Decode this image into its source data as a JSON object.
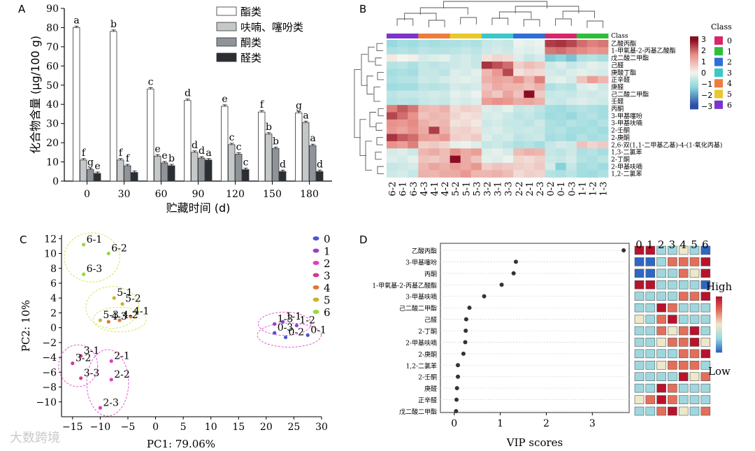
{
  "panel_labels": {
    "a": "A",
    "b": "B",
    "c": "C",
    "d": "D"
  },
  "colors": {
    "bar_series": [
      "#ffffff",
      "#c5c8c9",
      "#8e9499",
      "#2b2f33"
    ],
    "bar_edge": "#333333",
    "heat_low": "#2b4fa8",
    "heat_mid": "#f4f4ee",
    "heat_high": "#8b0d22",
    "class_colors": [
      "#d8266a",
      "#2fbe3a",
      "#2e6fd7",
      "#3ac8c8",
      "#f07c3c",
      "#e8c82a",
      "#7b35c9"
    ],
    "pca_colors": [
      "#5050d8",
      "#9a3fc9",
      "#e03cc8",
      "#d43a8e",
      "#e2733a",
      "#c9b32a",
      "#9ad83c"
    ],
    "ellipse": "#d9e35c",
    "ellipse_pink": "#e05bd0"
  },
  "watermark": "大数跨境",
  "chart_data": [
    {
      "type": "bar",
      "panel": "A",
      "categories": [
        "0",
        "30",
        "60",
        "90",
        "120",
        "150",
        "180"
      ],
      "xlabel": "贮藏时间 (d)",
      "ylabel": "化合物含量 (μg/100 g)",
      "ylim": [
        0,
        90
      ],
      "yticks": [
        0,
        10,
        20,
        30,
        40,
        50,
        60,
        70,
        80,
        90
      ],
      "legend_position": "top-right",
      "series": [
        {
          "name": "酯类",
          "values": [
            80,
            78,
            48,
            42,
            39,
            36,
            35.5
          ],
          "labels": [
            "a",
            "b",
            "c",
            "d",
            "e",
            "f",
            "g"
          ]
        },
        {
          "name": "呋喃、噻吩类",
          "values": [
            11,
            11,
            13,
            15,
            19,
            24.5,
            30.5
          ],
          "labels": [
            "f",
            "f",
            "e",
            "d",
            "c",
            "b",
            "a"
          ]
        },
        {
          "name": "酮类",
          "values": [
            6,
            8,
            9.5,
            12,
            14,
            17,
            18.5
          ],
          "labels": [
            "g",
            "f",
            "e",
            "d",
            "c",
            "b",
            "a"
          ]
        },
        {
          "name": "醛类",
          "values": [
            4,
            4.5,
            8,
            11,
            6,
            5,
            5
          ],
          "labels": [
            "e",
            "",
            "b",
            "a",
            "c",
            "d",
            "d"
          ]
        }
      ]
    },
    {
      "type": "heatmap",
      "panel": "B",
      "columns": [
        "6-2",
        "6-1",
        "6-3",
        "4-3",
        "4-1",
        "4-2",
        "5-2",
        "5-1",
        "5-3",
        "3-2",
        "3-1",
        "3-3",
        "2-2",
        "2-1",
        "2-3",
        "0-2",
        "0-1",
        "0-3",
        "1-1",
        "1-2",
        "1-3"
      ],
      "column_classes": [
        6,
        6,
        6,
        4,
        4,
        4,
        5,
        5,
        5,
        3,
        3,
        3,
        2,
        2,
        2,
        0,
        0,
        0,
        1,
        1,
        1
      ],
      "rows": [
        "乙酸丙酯",
        "1-甲氧基-2-丙基乙酸酯",
        "戊二酸二甲酯",
        "己醛",
        "庚酸丁酯",
        "正辛醛",
        "庚醛",
        "己二酸二甲酯",
        "壬醛",
        "丙酮",
        "3-甲基噻吩",
        "3-甲基呋喃",
        "2-壬酮",
        "2-庚酮",
        "2,6-双(1,1-二甲基乙基)-4-(1-氧化丙基)",
        "1,3-二氯苯",
        "2-丁酮",
        "2-甲基呋喃",
        "1,2-二氯苯"
      ],
      "class_title": "Class",
      "class_bar_label": "Class",
      "class_legend": [
        "0",
        "1",
        "2",
        "3",
        "4",
        "5",
        "6"
      ],
      "colorbar_ticks": [
        "3",
        "2",
        "1",
        "0",
        "−1",
        "−2",
        "−3"
      ],
      "values": [
        [
          -1.2,
          -1.0,
          -1.1,
          -0.9,
          -1.0,
          -0.9,
          -0.9,
          -0.8,
          -0.9,
          -0.6,
          -0.5,
          -0.6,
          -0.1,
          -0.2,
          -0.1,
          2.5,
          2.6,
          2.4,
          2.0,
          1.8,
          1.9
        ],
        [
          -0.9,
          -0.8,
          -0.9,
          -0.7,
          -0.8,
          -0.8,
          -0.7,
          -0.6,
          -0.7,
          -0.5,
          -0.4,
          -0.5,
          -0.2,
          -0.3,
          -0.2,
          1.9,
          2.0,
          1.8,
          1.7,
          1.5,
          1.6
        ],
        [
          0.2,
          0.0,
          0.1,
          -0.4,
          -0.3,
          -0.2,
          -0.5,
          -0.4,
          -0.6,
          0.3,
          0.5,
          0.4,
          -0.3,
          -0.6,
          -0.4,
          -1.5,
          -1.3,
          -1.6,
          -0.9,
          -0.8,
          -1.0
        ],
        [
          -0.8,
          -0.7,
          -0.9,
          -0.6,
          -0.7,
          -0.6,
          -0.5,
          -0.4,
          -0.6,
          2.6,
          2.3,
          2.0,
          0.6,
          0.9,
          0.7,
          -0.5,
          -0.3,
          -0.6,
          -0.4,
          -0.2,
          -0.3
        ],
        [
          -1.0,
          -0.9,
          -1.0,
          -0.6,
          -0.6,
          -0.7,
          -0.3,
          -0.4,
          -0.2,
          1.0,
          1.5,
          2.4,
          0.3,
          0.5,
          0.4,
          -0.4,
          -0.5,
          -0.3,
          -0.2,
          -0.3,
          -0.4
        ],
        [
          -0.9,
          -0.8,
          -0.8,
          -0.5,
          -0.6,
          -0.4,
          -0.3,
          -0.2,
          -0.3,
          1.1,
          1.3,
          1.2,
          1.6,
          1.0,
          1.8,
          -0.3,
          -0.2,
          -0.4,
          0.8,
          1.4,
          1.0
        ],
        [
          -1.1,
          -1.0,
          -1.0,
          -0.7,
          -0.8,
          -0.7,
          -0.4,
          -0.5,
          -0.4,
          0.8,
          1.2,
          1.0,
          1.0,
          0.8,
          1.1,
          -0.9,
          -0.7,
          -0.8,
          -0.3,
          -0.2,
          -0.5
        ],
        [
          -0.7,
          -0.6,
          -0.6,
          -0.5,
          -0.4,
          -0.5,
          -0.2,
          -0.3,
          -0.1,
          1.0,
          0.7,
          1.3,
          0.8,
          3.2,
          0.7,
          -0.6,
          -0.5,
          -0.6,
          -0.4,
          -0.5,
          -0.4
        ],
        [
          -0.8,
          -0.7,
          -0.8,
          -0.6,
          -0.5,
          -0.6,
          -0.3,
          -0.4,
          -0.3,
          1.4,
          1.6,
          1.5,
          1.2,
          1.3,
          1.1,
          -0.5,
          -0.6,
          -0.4,
          -0.3,
          -0.4,
          -0.5
        ],
        [
          1.8,
          2.2,
          1.9,
          1.0,
          0.9,
          1.1,
          0.4,
          0.6,
          0.5,
          -0.3,
          -0.4,
          -0.2,
          -0.6,
          -0.5,
          -0.7,
          -1.0,
          -1.1,
          -0.9,
          -0.8,
          -0.9,
          -1.0
        ],
        [
          2.4,
          2.0,
          1.6,
          0.8,
          1.0,
          0.9,
          0.5,
          0.3,
          0.4,
          -0.4,
          -0.3,
          -0.5,
          -0.7,
          -0.6,
          -0.8,
          -1.1,
          -1.0,
          -1.2,
          -0.9,
          -0.8,
          -1.0
        ],
        [
          1.6,
          1.5,
          1.7,
          1.1,
          0.9,
          1.0,
          0.3,
          0.4,
          0.2,
          -0.5,
          -0.4,
          -0.6,
          -0.6,
          -0.7,
          -0.5,
          -0.9,
          -1.0,
          -0.8,
          -0.9,
          -1.0,
          -0.8
        ],
        [
          1.5,
          1.3,
          1.6,
          1.2,
          2.5,
          1.1,
          0.5,
          0.6,
          0.4,
          -0.4,
          -0.3,
          -0.5,
          -0.6,
          -0.5,
          -0.6,
          -0.9,
          -0.8,
          -1.0,
          -1.0,
          -0.9,
          -1.1
        ],
        [
          2.6,
          2.2,
          2.0,
          1.4,
          1.3,
          1.5,
          0.6,
          0.5,
          0.7,
          -0.3,
          -0.5,
          -0.4,
          -0.7,
          -0.6,
          -0.5,
          -1.0,
          -0.9,
          -1.1,
          -0.8,
          -1.0,
          -0.9
        ],
        [
          1.6,
          1.4,
          1.8,
          0.6,
          0.7,
          0.5,
          -0.2,
          -0.1,
          -0.3,
          -0.6,
          -0.5,
          -0.7,
          -0.9,
          -0.8,
          -1.0,
          -0.6,
          -0.4,
          -0.5,
          0.8,
          0.5,
          0.7
        ],
        [
          -0.4,
          -0.3,
          -0.5,
          1.0,
          1.2,
          0.9,
          1.6,
          1.2,
          1.4,
          -0.3,
          -0.2,
          -0.4,
          0.9,
          1.1,
          1.0,
          -0.6,
          -0.7,
          -0.5,
          -0.9,
          -0.8,
          -1.0
        ],
        [
          -0.3,
          -0.4,
          -0.2,
          0.8,
          0.7,
          0.9,
          3.3,
          1.2,
          0.8,
          -0.2,
          -0.3,
          -0.1,
          0.5,
          0.4,
          0.6,
          -0.5,
          -0.6,
          -0.4,
          -0.8,
          -0.9,
          -0.7
        ],
        [
          -0.6,
          -0.5,
          -0.4,
          1.0,
          1.3,
          1.1,
          1.4,
          1.2,
          1.5,
          0.6,
          0.8,
          0.7,
          0.6,
          0.5,
          0.7,
          -0.4,
          -1.4,
          -0.6,
          -1.0,
          -0.9,
          -1.1
        ],
        [
          -0.5,
          -0.4,
          -0.6,
          1.1,
          1.0,
          1.2,
          1.2,
          1.5,
          1.0,
          1.0,
          1.1,
          0.9,
          0.4,
          0.6,
          0.5,
          -0.8,
          -0.9,
          -0.7,
          -1.0,
          -1.1,
          -0.9
        ]
      ]
    },
    {
      "type": "scatter",
      "panel": "C",
      "xlabel": "PC1: 79.06%",
      "ylabel": "PC2: 10%",
      "xlim": [
        -17,
        30
      ],
      "ylim": [
        -12,
        12.5
      ],
      "xticks": [
        -15,
        -10,
        -5,
        0,
        5,
        10,
        15,
        20,
        25,
        30
      ],
      "yticks": [
        -10,
        -8,
        -6,
        -4,
        -2,
        0,
        2,
        4,
        6,
        8,
        10,
        12
      ],
      "legend_position": "top-right",
      "groups": [
        {
          "name": "0",
          "points": [
            {
              "label": "0-1",
              "x": 27.5,
              "y": -1.0
            },
            {
              "label": "0-2",
              "x": 23.5,
              "y": -1.3
            },
            {
              "label": "0-3",
              "x": 21.5,
              "y": -0.7
            }
          ]
        },
        {
          "name": "1",
          "points": [
            {
              "label": "1-1",
              "x": 23,
              "y": 0.8
            },
            {
              "label": "1-2",
              "x": 25.5,
              "y": 0.3
            },
            {
              "label": "1-3",
              "x": 21.5,
              "y": 0.5
            }
          ]
        },
        {
          "name": "2",
          "points": [
            {
              "label": "2-1",
              "x": -8,
              "y": -4.5
            },
            {
              "label": "2-2",
              "x": -8,
              "y": -7.0
            },
            {
              "label": "2-3",
              "x": -10,
              "y": -10.8
            }
          ]
        },
        {
          "name": "3",
          "points": [
            {
              "label": "3-1",
              "x": -13.5,
              "y": -3.8
            },
            {
              "label": "3-2",
              "x": -15,
              "y": -4.8
            },
            {
              "label": "3-3",
              "x": -13.5,
              "y": -6.8
            }
          ]
        },
        {
          "name": "4",
          "points": [
            {
              "label": "4-1",
              "x": -4.5,
              "y": 1.5
            },
            {
              "label": "4-2",
              "x": -6.5,
              "y": 1.0
            },
            {
              "label": "4-3",
              "x": -8.5,
              "y": 0.8
            }
          ]
        },
        {
          "name": "5",
          "points": [
            {
              "label": "5-1",
              "x": -7.5,
              "y": 4.0
            },
            {
              "label": "5-2",
              "x": -6,
              "y": 3.2
            },
            {
              "label": "5-3",
              "x": -10,
              "y": 1.0
            }
          ]
        },
        {
          "name": "6",
          "points": [
            {
              "label": "6-1",
              "x": -13,
              "y": 11.2
            },
            {
              "label": "6-2",
              "x": -8.5,
              "y": 10.0
            },
            {
              "label": "6-3",
              "x": -13,
              "y": 7.2
            }
          ]
        }
      ]
    },
    {
      "type": "scatter",
      "panel": "D",
      "xlabel": "VIP scores",
      "xlim": [
        -0.3,
        3.8
      ],
      "xticks": [
        0,
        1,
        2,
        3
      ],
      "categories": [
        "乙酸丙酯",
        "3-甲基噻吩",
        "丙酮",
        "1-甲氧基-2-丙基乙酸酯",
        "3-甲基呋喃",
        "己二酸二甲酯",
        "己醛",
        "2-丁酮",
        "2-甲基呋喃",
        "2-庚酮",
        "1,2-二氯苯",
        "2-壬酮",
        "庚醛",
        "正辛醛",
        "戊二酸二甲酯"
      ],
      "values": [
        3.68,
        1.34,
        1.29,
        1.03,
        0.65,
        0.33,
        0.26,
        0.25,
        0.24,
        0.2,
        0.08,
        0.08,
        0.06,
        0.05,
        0.04
      ],
      "class_header": [
        "0",
        "1",
        "2",
        "3",
        "4",
        "5",
        "6"
      ],
      "legend_high": "High",
      "legend_low": "Low",
      "class_matrix": [
        [
          2,
          2,
          -1,
          -1,
          0,
          -1,
          -2
        ],
        [
          -2,
          -2,
          -1,
          1,
          1,
          1,
          2
        ],
        [
          -2,
          -2,
          -1,
          -1,
          1,
          0,
          2
        ],
        [
          2,
          2,
          -1,
          -1,
          -1,
          -1,
          -2
        ],
        [
          -1,
          -1,
          -1,
          -1,
          1,
          1,
          2
        ],
        [
          -1,
          -1,
          2,
          1,
          -1,
          -1,
          -1
        ],
        [
          0,
          -1,
          1,
          2,
          -1,
          -1,
          -1
        ],
        [
          -1,
          -1,
          1,
          0,
          1,
          2,
          -1
        ],
        [
          -1,
          -1,
          0,
          1,
          1,
          2,
          0
        ],
        [
          -1,
          -1,
          -1,
          -1,
          1,
          1,
          2
        ],
        [
          -1,
          -1,
          0,
          1,
          1,
          1,
          -1
        ],
        [
          -1,
          -1,
          -1,
          -1,
          2,
          0,
          1
        ],
        [
          -1,
          -1,
          2,
          1,
          -1,
          -1,
          -1
        ],
        [
          0,
          1,
          2,
          1,
          -1,
          -1,
          -1
        ],
        [
          -1,
          -1,
          1,
          2,
          0,
          -1,
          1
        ]
      ]
    }
  ]
}
